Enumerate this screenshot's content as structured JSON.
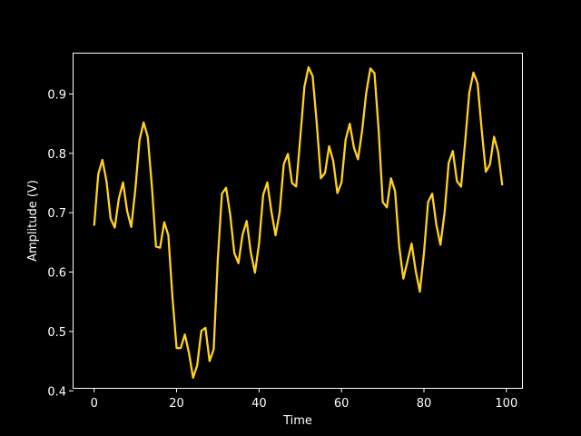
{
  "chart_data": {
    "type": "line",
    "xlabel": "Time",
    "ylabel": "Amplitude (V)",
    "xlim": [
      -5,
      104
    ],
    "ylim": [
      0.405,
      0.968
    ],
    "xticks": [
      0,
      20,
      40,
      60,
      80,
      100
    ],
    "yticks": [
      0.4,
      0.5,
      0.6,
      0.7,
      0.8,
      0.9
    ],
    "xtick_labels": [
      "0",
      "20",
      "40",
      "60",
      "80",
      "100"
    ],
    "ytick_labels": [
      "0.4",
      "0.5",
      "0.6",
      "0.7",
      "0.8",
      "0.9"
    ],
    "grid": false,
    "background": "#000000",
    "axis_color": "#ffffff",
    "series": [
      {
        "color": "#ffd21f",
        "x": [
          0,
          1,
          2,
          3,
          4,
          5,
          6,
          7,
          8,
          9,
          10,
          11,
          12,
          13,
          14,
          15,
          16,
          17,
          18,
          19,
          20,
          21,
          22,
          23,
          24,
          25,
          26,
          27,
          28,
          29,
          30,
          31,
          32,
          33,
          34,
          35,
          36,
          37,
          38,
          39,
          40,
          41,
          42,
          43,
          44,
          45,
          46,
          47,
          48,
          49,
          50,
          51,
          52,
          53,
          54,
          55,
          56,
          57,
          58,
          59,
          60,
          61,
          62,
          63,
          64,
          65,
          66,
          67,
          68,
          69,
          70,
          71,
          72,
          73,
          74,
          75,
          76,
          77,
          78,
          79,
          80,
          81,
          82,
          83,
          84,
          85,
          86,
          87,
          88,
          89,
          90,
          91,
          92,
          93,
          94,
          95,
          96,
          97,
          98,
          99
        ],
        "values": [
          0.678,
          0.765,
          0.789,
          0.753,
          0.69,
          0.675,
          0.724,
          0.751,
          0.703,
          0.676,
          0.74,
          0.822,
          0.852,
          0.828,
          0.745,
          0.643,
          0.641,
          0.684,
          0.662,
          0.557,
          0.472,
          0.472,
          0.495,
          0.464,
          0.422,
          0.443,
          0.501,
          0.506,
          0.45,
          0.47,
          0.622,
          0.732,
          0.742,
          0.697,
          0.632,
          0.615,
          0.663,
          0.686,
          0.633,
          0.599,
          0.648,
          0.73,
          0.751,
          0.702,
          0.662,
          0.701,
          0.782,
          0.799,
          0.75,
          0.744,
          0.826,
          0.912,
          0.945,
          0.93,
          0.85,
          0.758,
          0.767,
          0.812,
          0.787,
          0.733,
          0.751,
          0.823,
          0.85,
          0.81,
          0.79,
          0.838,
          0.902,
          0.943,
          0.935,
          0.84,
          0.718,
          0.709,
          0.758,
          0.736,
          0.643,
          0.589,
          0.618,
          0.648,
          0.602,
          0.567,
          0.632,
          0.718,
          0.732,
          0.68,
          0.646,
          0.7,
          0.784,
          0.804,
          0.753,
          0.744,
          0.82,
          0.902,
          0.936,
          0.918,
          0.84,
          0.769,
          0.781,
          0.828,
          0.802,
          0.746
        ]
      }
    ]
  }
}
